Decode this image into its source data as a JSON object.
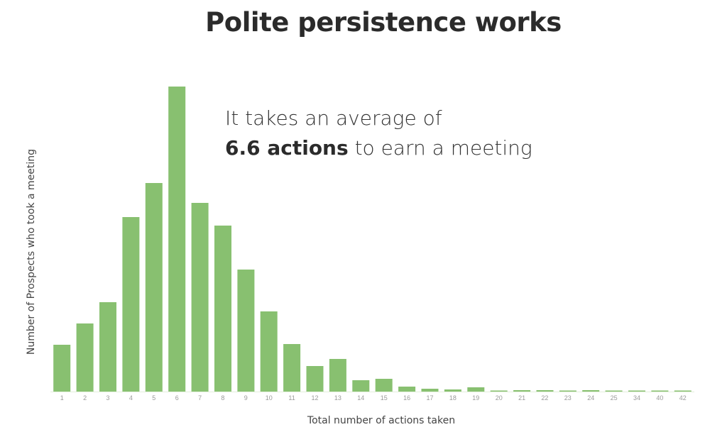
{
  "chart_data": {
    "type": "bar",
    "title": "Polite persistence works",
    "xlabel": "Total number of actions taken",
    "ylabel": "Number of Prospects who took a meeting",
    "categories": [
      "1",
      "2",
      "3",
      "4",
      "5",
      "6",
      "7",
      "8",
      "9",
      "10",
      "11",
      "12",
      "13",
      "14",
      "15",
      "16",
      "17",
      "18",
      "19",
      "20",
      "21",
      "22",
      "23",
      "24",
      "25",
      "34",
      "40",
      "42"
    ],
    "values": [
      66,
      96,
      126,
      246,
      294,
      430,
      266,
      234,
      172,
      113,
      67,
      36,
      46,
      16,
      18,
      7,
      4,
      3,
      6,
      1,
      2,
      2,
      1,
      2,
      1,
      1,
      1,
      1
    ],
    "ylim": [
      0,
      430
    ],
    "grid": false,
    "color": "#88c070",
    "annotation": {
      "line1": "It takes an average of",
      "line2_bold": "6.6 actions",
      "line2_rest": " to earn a meeting"
    }
  }
}
